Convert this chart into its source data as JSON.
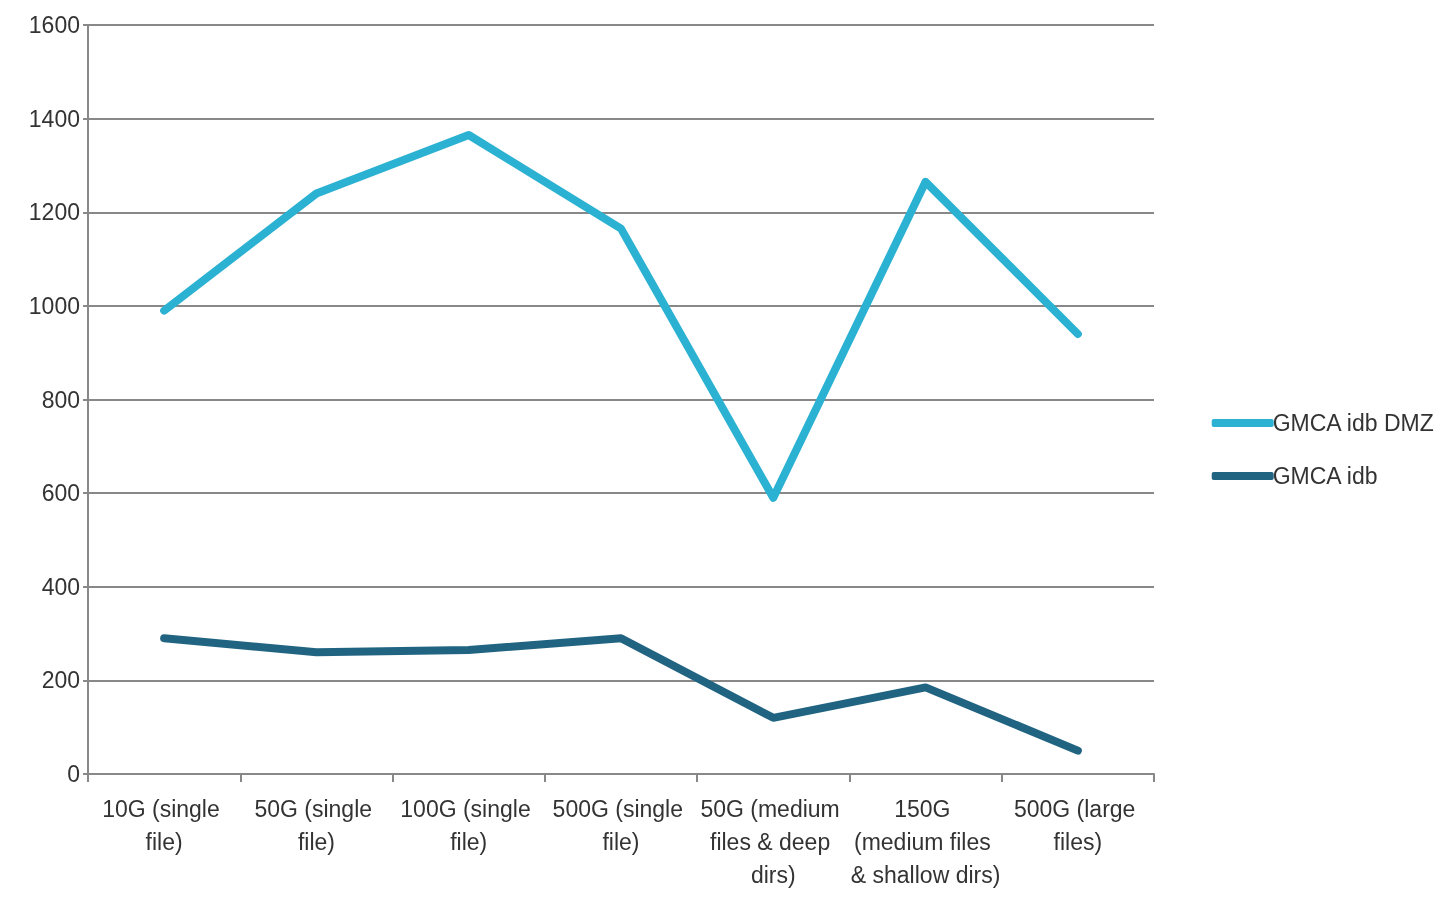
{
  "chart_data": {
    "type": "line",
    "categories": [
      "10G (single file)",
      "50G (single file)",
      "100G (single file)",
      "500G (single file)",
      "50G (medium files & deep dirs)",
      "150G (medium files & shallow dirs)",
      "500G (large files)"
    ],
    "series": [
      {
        "name": "GMCA idb DMZ",
        "color": "#2bb1d2",
        "values": [
          990,
          1240,
          1365,
          1165,
          590,
          1265,
          940
        ]
      },
      {
        "name": "GMCA idb",
        "color": "#216482",
        "values": [
          290,
          260,
          265,
          290,
          120,
          185,
          50
        ]
      }
    ],
    "ylim": [
      0,
      1600
    ],
    "yticks": [
      0,
      200,
      400,
      600,
      800,
      1000,
      1200,
      1400,
      1600
    ],
    "grid": "y",
    "legend": "right",
    "line_style": "solid"
  }
}
